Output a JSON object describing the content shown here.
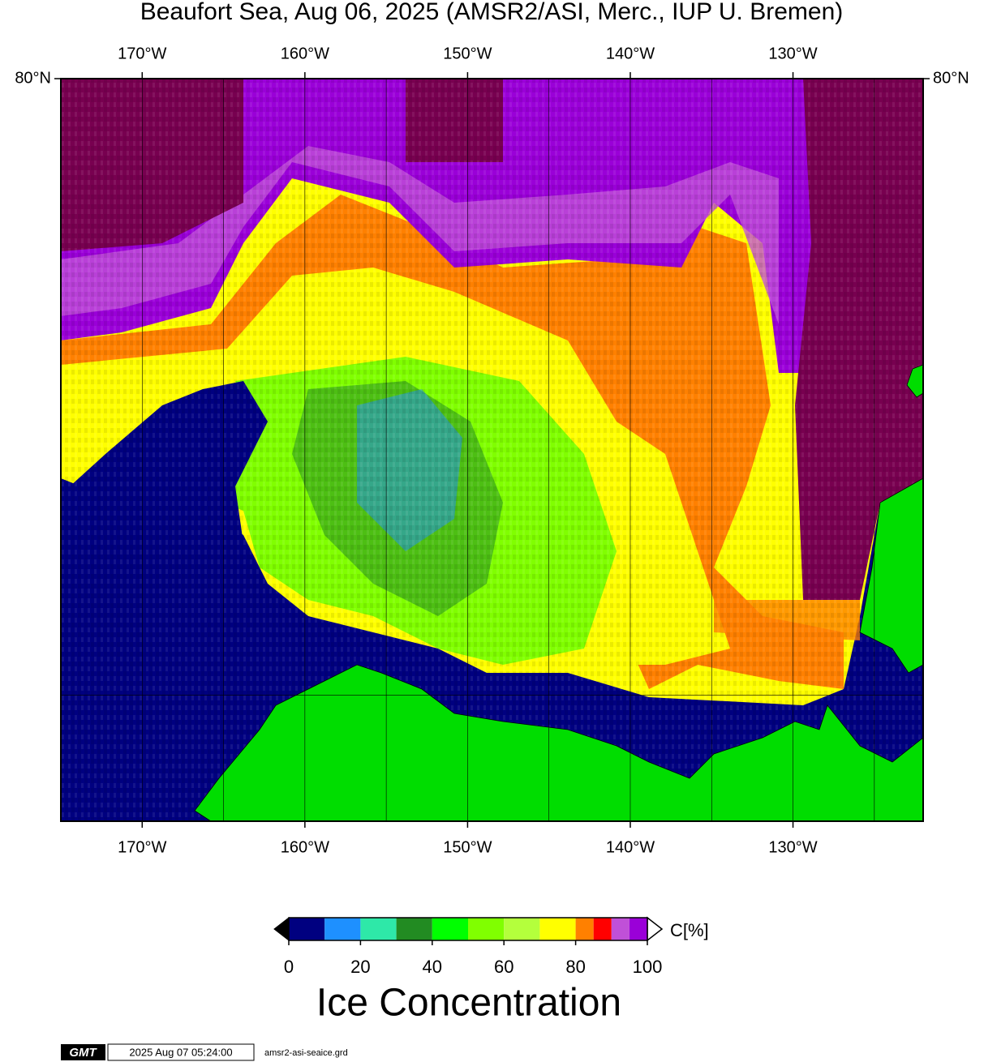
{
  "title": "Beaufort Sea, Aug 06, 2025 (AMSR2/ASI, Merc., IUP U. Bremen)",
  "map": {
    "projection": "Mercator",
    "xlim": [
      -175,
      -122
    ],
    "ylim": [
      67,
      80
    ],
    "xticks": [
      {
        "value": -170,
        "label": "170°W"
      },
      {
        "value": -160,
        "label": "160°W"
      },
      {
        "value": -150,
        "label": "150°W"
      },
      {
        "value": -140,
        "label": "140°W"
      },
      {
        "value": -130,
        "label": "130°W"
      }
    ],
    "x_minor_ticks": [
      -165,
      -155,
      -145,
      -135,
      -125
    ],
    "yticks": [
      {
        "value": 80,
        "label": "80°N"
      }
    ],
    "y_minor_ticks": [
      70
    ]
  },
  "colorbar": {
    "bins": [
      0,
      10,
      20,
      30,
      40,
      50,
      60,
      70,
      80,
      85,
      90,
      95,
      100
    ],
    "colors": [
      "#000080",
      "#1e90ff",
      "#2ee8a8",
      "#228b22",
      "#00ff00",
      "#80ff00",
      "#b4ff3c",
      "#ffff00",
      "#ff8000",
      "#ff0000",
      "#c050d8",
      "#9a00d8"
    ],
    "ticks": [
      0,
      20,
      40,
      60,
      80,
      100
    ],
    "unit": "C[%]",
    "label": "Ice Concentration"
  },
  "footer": {
    "logo": "GMT",
    "timestamp": "2025 Aug 07 05:24:00",
    "file": "amsr2-asi-seaice.grd"
  }
}
